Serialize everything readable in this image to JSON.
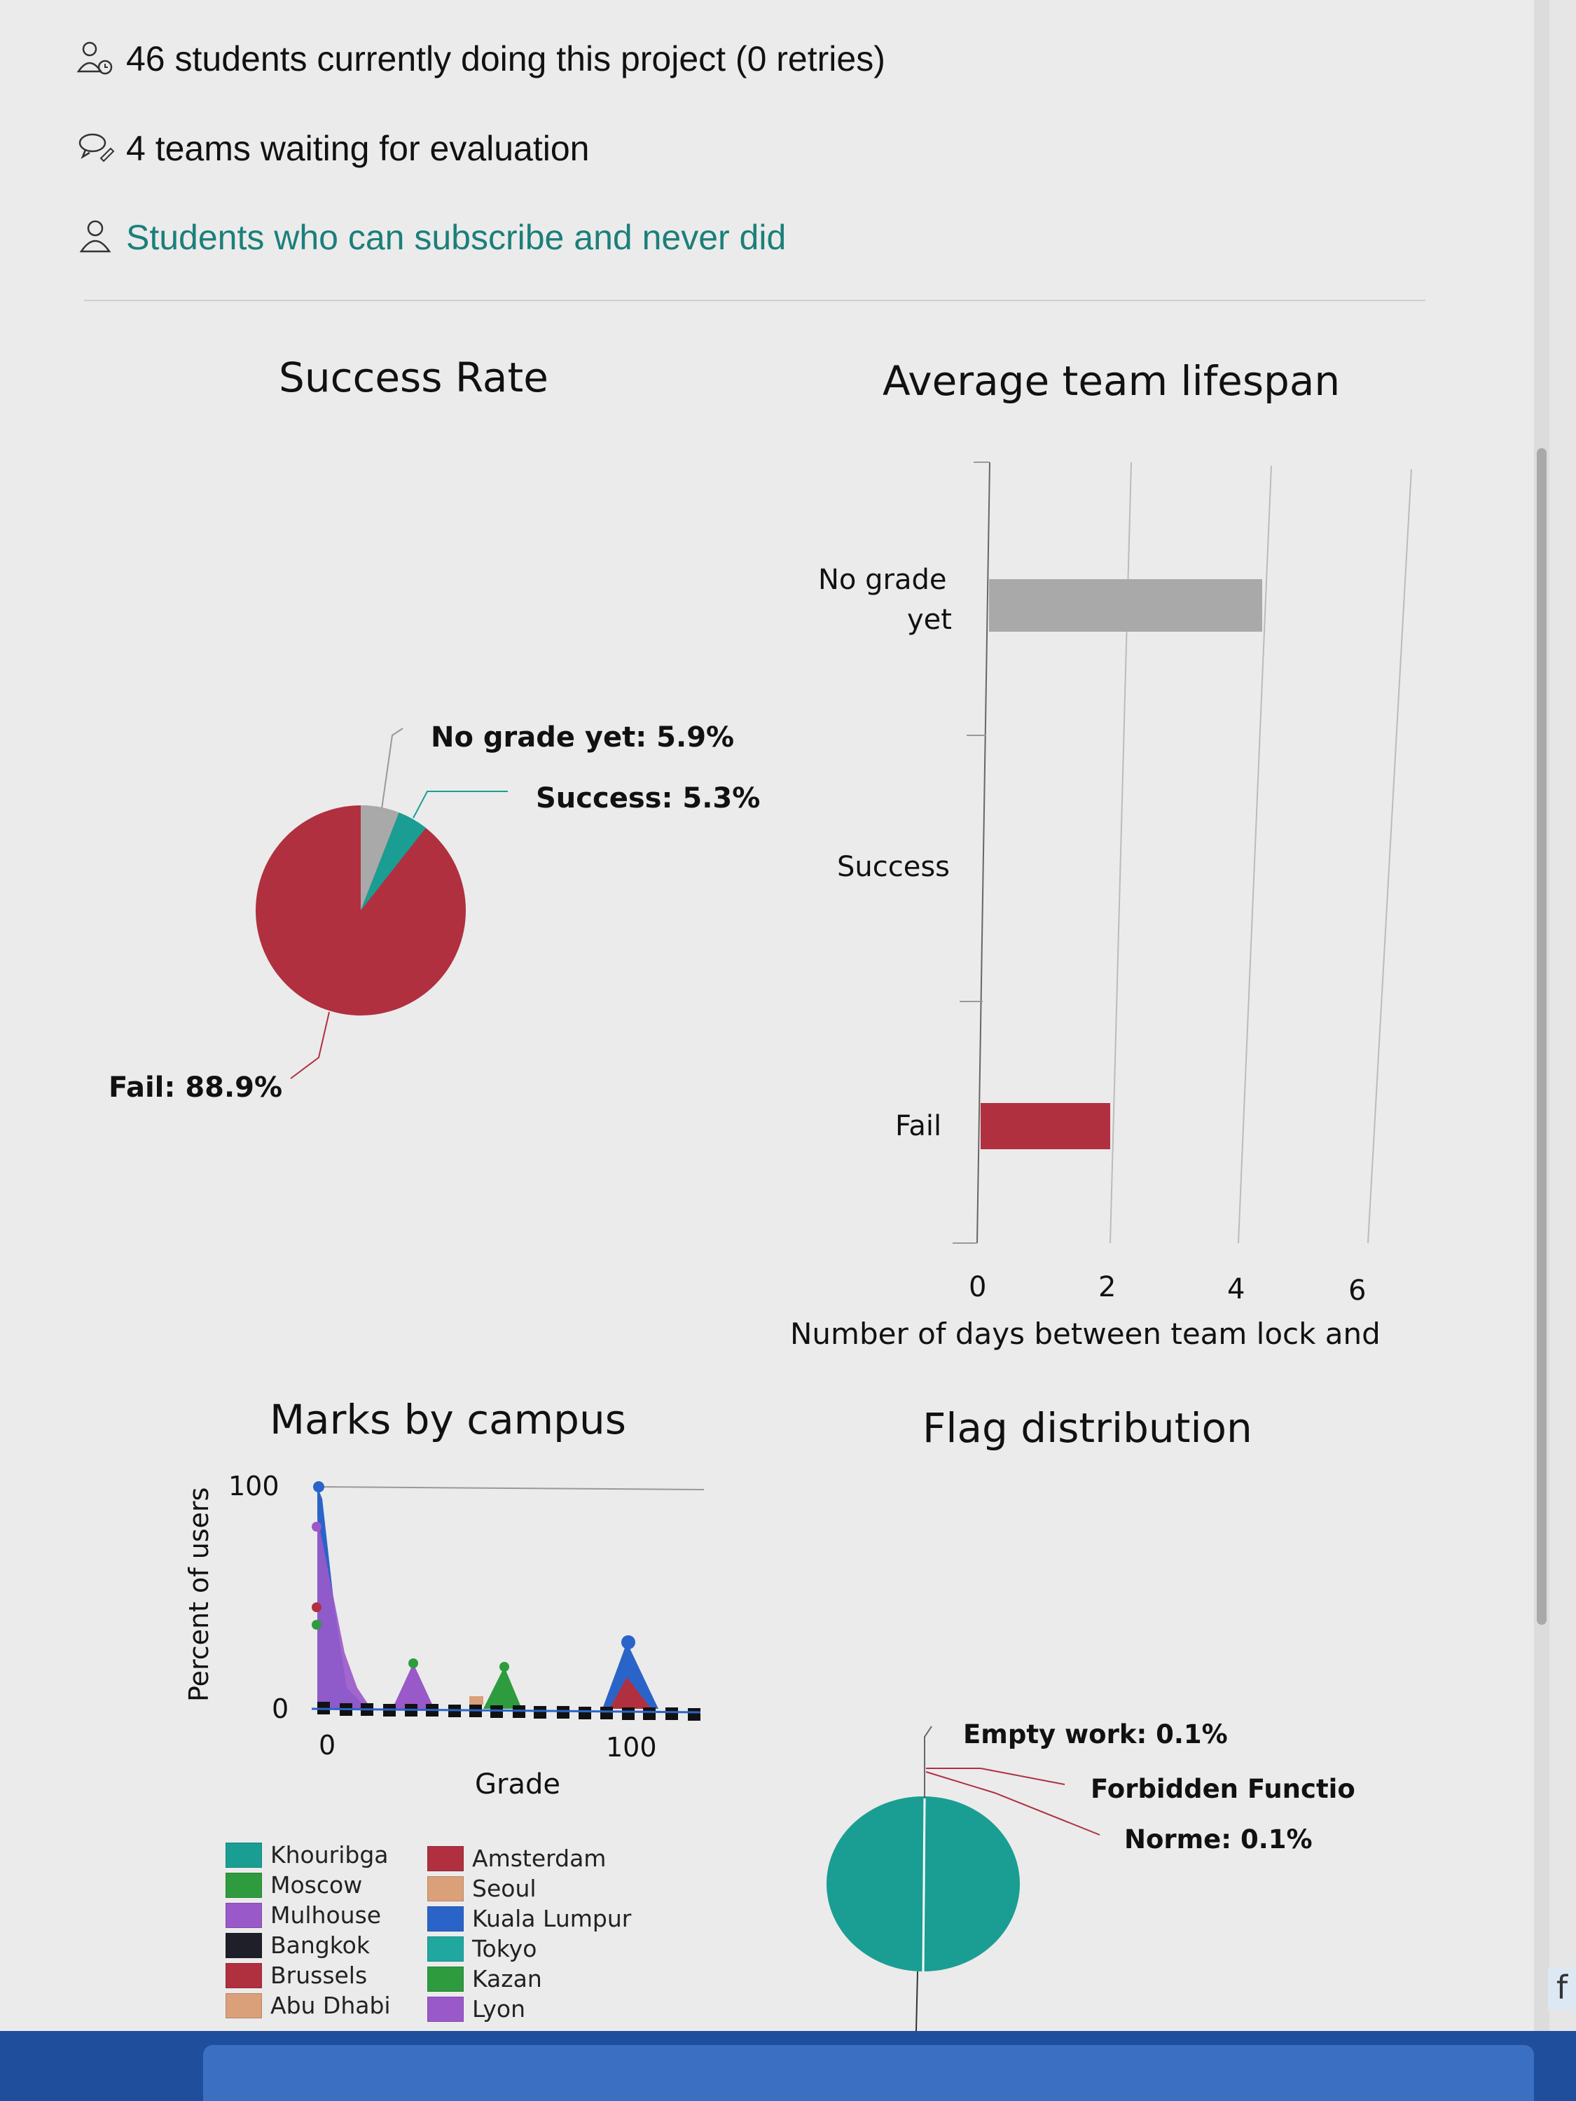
{
  "info": {
    "students_line": "46 students currently doing this project (0 retries)",
    "teams_line": "4 teams waiting for evaluation",
    "subscribe_link": "Students who can subscribe and never did"
  },
  "success_rate": {
    "title": "Success Rate",
    "label_no_grade": "No grade yet: 5.9%",
    "label_success": "Success: 5.3%",
    "label_fail": "Fail: 88.9%"
  },
  "lifespan": {
    "title": "Average team lifespan",
    "cat_no_grade_1": "No grade",
    "cat_no_grade_2": "yet",
    "cat_success": "Success",
    "cat_fail": "Fail",
    "ticks": [
      "0",
      "2",
      "4",
      "6"
    ],
    "xlabel": "Number of days between team lock and"
  },
  "marks": {
    "title": "Marks by campus",
    "ylabel": "Percent of users",
    "xlabel": "Grade",
    "ytick_top": "100",
    "ytick_bottom": "0",
    "xtick_left": "0",
    "xtick_right": "100",
    "legend_col1": [
      "Khouribga",
      "Moscow",
      "Mulhouse",
      "Bangkok",
      "Brussels",
      "Abu Dhabi"
    ],
    "legend_col2": [
      "Amsterdam",
      "Seoul",
      "Kuala Lumpur",
      "Tokyo",
      "Kazan",
      "Lyon"
    ]
  },
  "flags": {
    "title": "Flag distribution",
    "label_empty": "Empty work: 0.1%",
    "label_forbidden": "Forbidden Functio",
    "label_norme": "Norme: 0.1%"
  },
  "colors": {
    "fail": "#b03040",
    "success": "#1a9e93",
    "no_grade": "#a9a9a9",
    "link": "#1b7f7a"
  },
  "chart_data": [
    {
      "type": "pie",
      "title": "Success Rate",
      "categories": [
        "No grade yet",
        "Success",
        "Fail"
      ],
      "values": [
        5.9,
        5.3,
        88.9
      ]
    },
    {
      "type": "bar",
      "title": "Average team lifespan",
      "orientation": "horizontal",
      "categories": [
        "No grade yet",
        "Success",
        "Fail"
      ],
      "values": [
        4.2,
        0,
        2.0
      ],
      "xlabel": "Number of days between team lock and",
      "xlim": [
        0,
        6
      ],
      "xticks": [
        0,
        2,
        4,
        6
      ]
    },
    {
      "type": "area",
      "title": "Marks by campus",
      "xlabel": "Grade",
      "ylabel": "Percent of users",
      "ylim": [
        0,
        100
      ],
      "series": [
        {
          "name": "Kuala Lumpur",
          "x": [
            0,
            10,
            20,
            30,
            100
          ],
          "values": [
            100,
            20,
            5,
            3,
            25
          ]
        },
        {
          "name": "Mulhouse",
          "x": [
            0,
            10,
            30,
            50
          ],
          "values": [
            85,
            15,
            10,
            5
          ]
        },
        {
          "name": "Brussels",
          "x": [
            0,
            95,
            100
          ],
          "values": [
            50,
            15,
            20
          ]
        },
        {
          "name": "Moscow",
          "x": [
            0,
            30,
            60
          ],
          "values": [
            40,
            15,
            10
          ]
        },
        {
          "name": "Kazan",
          "x": [
            60
          ],
          "values": [
            18
          ]
        }
      ]
    },
    {
      "type": "pie",
      "title": "Flag distribution",
      "categories": [
        "Empty work",
        "Forbidden Functio",
        "Norme"
      ],
      "values": [
        0.1,
        0.1,
        0.1
      ]
    }
  ]
}
